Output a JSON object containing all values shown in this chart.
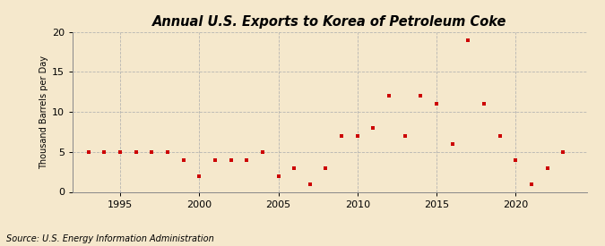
{
  "title": "Annual U.S. Exports to Korea of Petroleum Coke",
  "ylabel": "Thousand Barrels per Day",
  "source": "Source: U.S. Energy Information Administration",
  "background_color": "#f5e8cc",
  "plot_background_color": "#f5e8cc",
  "marker_color": "#cc0000",
  "marker": "s",
  "marker_size": 3.5,
  "xlim": [
    1992,
    2024.5
  ],
  "ylim": [
    0,
    20
  ],
  "yticks": [
    0,
    5,
    10,
    15,
    20
  ],
  "xticks": [
    1995,
    2000,
    2005,
    2010,
    2015,
    2020
  ],
  "grid_color": "#b0b0b0",
  "years": [
    1993,
    1994,
    1995,
    1996,
    1997,
    1998,
    1999,
    2000,
    2001,
    2002,
    2003,
    2004,
    2005,
    2006,
    2007,
    2008,
    2009,
    2010,
    2011,
    2012,
    2013,
    2014,
    2015,
    2016,
    2017,
    2018,
    2019,
    2020,
    2021,
    2022,
    2023
  ],
  "values": [
    5,
    5,
    5,
    5,
    5,
    5,
    4,
    2,
    4,
    4,
    4,
    5,
    2,
    3,
    1,
    3,
    7,
    7,
    8,
    12,
    7,
    12,
    11,
    6,
    19,
    11,
    7,
    4,
    1,
    3,
    5
  ],
  "title_fontsize": 10.5,
  "ylabel_fontsize": 7,
  "tick_fontsize": 8,
  "source_fontsize": 7
}
